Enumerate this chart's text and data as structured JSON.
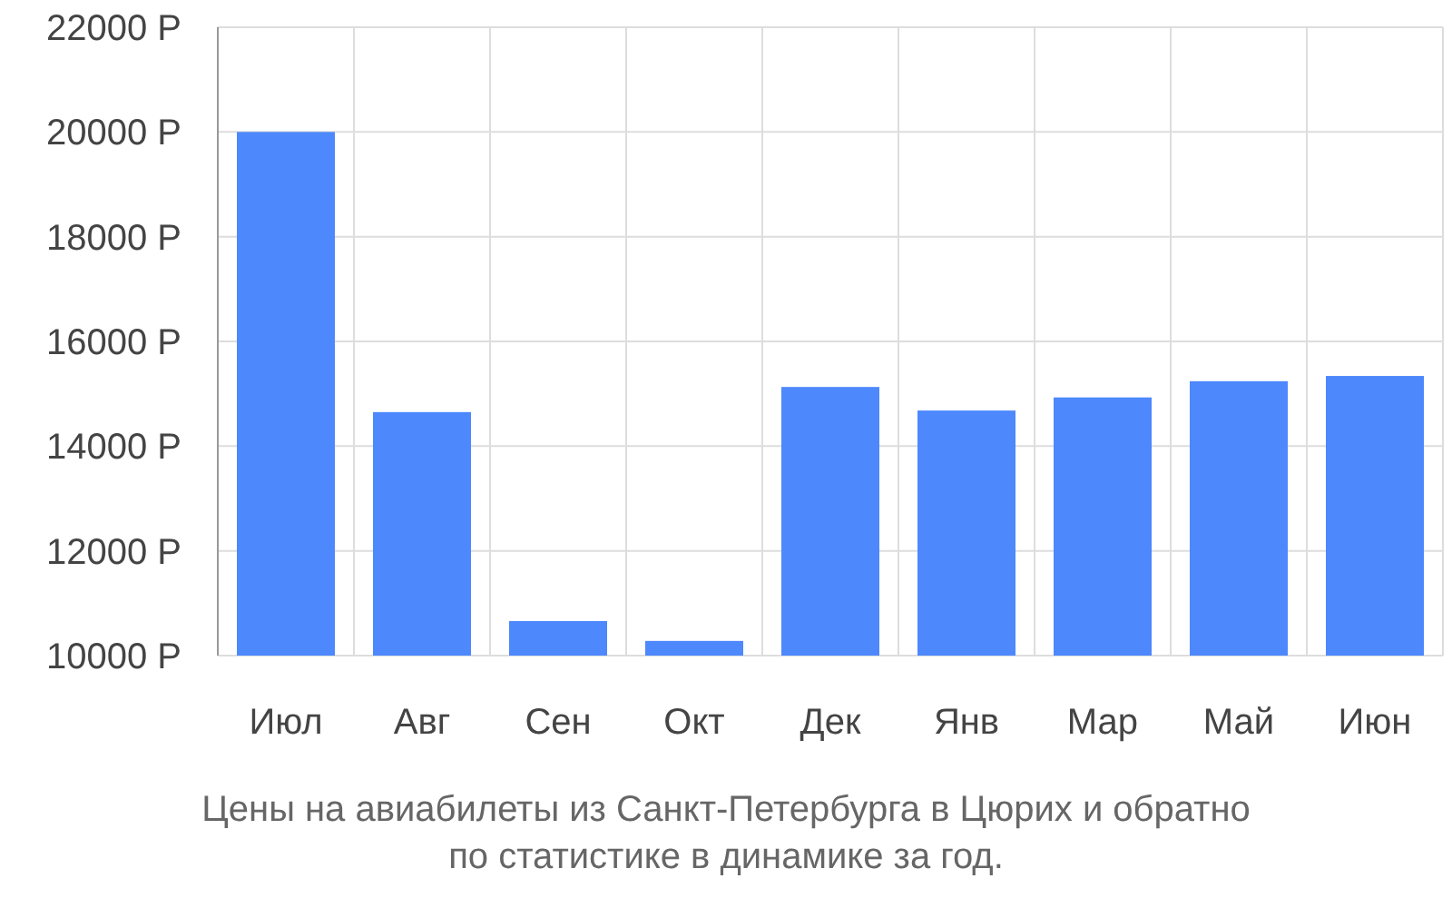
{
  "chart_data": {
    "type": "bar",
    "title": "Цены на авиабилеты из Санкт-Петербурга в Цюрих и обратно\nпо статистике в динамике за год.",
    "categories": [
      "Июл",
      "Авг",
      "Сен",
      "Окт",
      "Дек",
      "Янв",
      "Мар",
      "Май",
      "Июн"
    ],
    "values": [
      20000,
      14650,
      10660,
      10280,
      15130,
      14680,
      14930,
      15240,
      15340
    ],
    "color": "#4d88fd",
    "ylim": [
      10000,
      22000
    ],
    "yticks": [
      {
        "value": 10000,
        "label": "10000 Р"
      },
      {
        "value": 12000,
        "label": "12000 Р"
      },
      {
        "value": 14000,
        "label": "14000 Р"
      },
      {
        "value": 16000,
        "label": "16000 Р"
      },
      {
        "value": 18000,
        "label": "18000 Р"
      },
      {
        "value": 20000,
        "label": "20000 Р"
      },
      {
        "value": 22000,
        "label": "22000 Р"
      }
    ],
    "grid": true
  }
}
